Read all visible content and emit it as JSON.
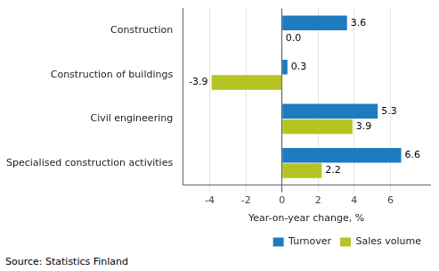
{
  "chart_data": {
    "type": "bar",
    "orientation": "horizontal",
    "categories": [
      "Construction",
      "Construction of buildings",
      "Civil engineering",
      "Specialised construction activities"
    ],
    "series": [
      {
        "name": "Turnover",
        "color": "#1f7bbf",
        "values": [
          3.6,
          0.3,
          5.3,
          6.6
        ],
        "value_labels": [
          "3.6",
          "0.3",
          "5.3",
          "6.6"
        ]
      },
      {
        "name": "Sales volume",
        "color": "#b5c422",
        "values": [
          0.0,
          -3.9,
          3.9,
          2.2
        ],
        "value_labels": [
          "0.0",
          "-3.9",
          "3.9",
          "2.2"
        ]
      }
    ],
    "xlabel": "Year-on-year change, %",
    "xlim": [
      -5.5,
      8.2
    ],
    "xticks": [
      -4,
      -2,
      0,
      2,
      4,
      6
    ],
    "grid": true,
    "data_labels": true,
    "legend": "lower right",
    "source": "Source: Statistics Finland"
  }
}
